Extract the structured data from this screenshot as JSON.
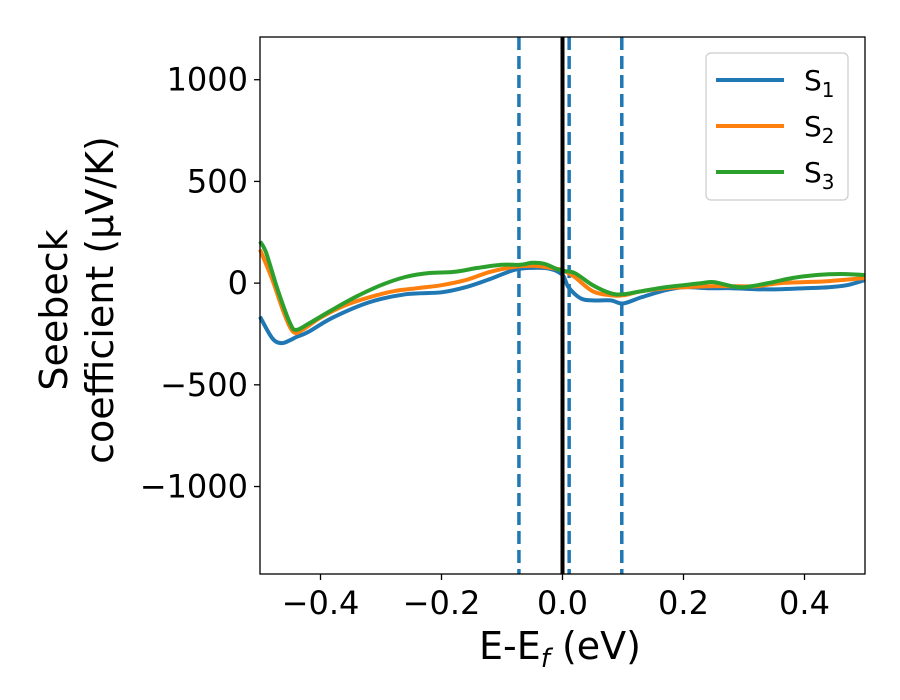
{
  "chart_data": {
    "type": "line",
    "xlabel": {
      "main": "E-E",
      "sub": "f",
      "rest": " (eV)"
    },
    "ylabel": {
      "line1": "Seebeck",
      "line2": "coefficient  (μV/K)"
    },
    "xlim": [
      -0.5,
      0.5
    ],
    "ylim": [
      -1430,
      1210
    ],
    "xticks": [
      -0.4,
      -0.2,
      0.0,
      0.2,
      0.4
    ],
    "xtick_labels": [
      "−0.4",
      "−0.2",
      "0.0",
      "0.2",
      "0.4"
    ],
    "yticks": [
      1000,
      500,
      0,
      -500,
      -1000
    ],
    "ytick_labels": [
      "1000",
      "500",
      "0",
      "−500",
      "−1000"
    ],
    "grid": false,
    "legend_position": "top-right",
    "vertical_lines": [
      {
        "x": 0.0,
        "style": "solid",
        "color": "#000000"
      },
      {
        "x": -0.072,
        "style": "dashed",
        "color": "#1f77b4"
      },
      {
        "x": 0.011,
        "style": "dashed",
        "color": "#1f77b4"
      },
      {
        "x": 0.098,
        "style": "dashed",
        "color": "#1f77b4"
      }
    ],
    "series": [
      {
        "name": "S",
        "name_sub": "1",
        "color": "#1f77b4",
        "x": [
          -0.5,
          -0.48,
          -0.465,
          -0.45,
          -0.44,
          -0.42,
          -0.38,
          -0.32,
          -0.26,
          -0.2,
          -0.16,
          -0.12,
          -0.08,
          -0.05,
          -0.02,
          0.0,
          0.01,
          0.03,
          0.05,
          0.08,
          0.1,
          0.13,
          0.17,
          0.2,
          0.24,
          0.28,
          0.32,
          0.36,
          0.4,
          0.44,
          0.47,
          0.5
        ],
        "y": [
          -165,
          -270,
          -295,
          -280,
          -265,
          -240,
          -170,
          -95,
          -55,
          -45,
          -20,
          20,
          65,
          75,
          70,
          40,
          -20,
          -75,
          -85,
          -85,
          -100,
          -70,
          -35,
          -20,
          -25,
          -25,
          -30,
          -30,
          -25,
          -20,
          -10,
          15
        ]
      },
      {
        "name": "S",
        "name_sub": "2",
        "color": "#ff7f0e",
        "x": [
          -0.5,
          -0.48,
          -0.46,
          -0.445,
          -0.43,
          -0.4,
          -0.36,
          -0.32,
          -0.28,
          -0.24,
          -0.2,
          -0.16,
          -0.12,
          -0.08,
          -0.05,
          -0.03,
          -0.01,
          0.0,
          0.02,
          0.05,
          0.08,
          0.1,
          0.13,
          0.17,
          0.2,
          0.24,
          0.28,
          0.32,
          0.36,
          0.4,
          0.44,
          0.5
        ],
        "y": [
          165,
          20,
          -150,
          -240,
          -230,
          -170,
          -110,
          -70,
          -40,
          -25,
          -10,
          15,
          55,
          80,
          85,
          80,
          70,
          65,
          30,
          -40,
          -60,
          -60,
          -40,
          -25,
          -20,
          -15,
          -15,
          -15,
          0,
          5,
          10,
          25
        ]
      },
      {
        "name": "S",
        "name_sub": "3",
        "color": "#2ca02c",
        "x": [
          -0.5,
          -0.49,
          -0.47,
          -0.45,
          -0.44,
          -0.42,
          -0.38,
          -0.34,
          -0.3,
          -0.26,
          -0.22,
          -0.18,
          -0.14,
          -0.1,
          -0.07,
          -0.05,
          -0.03,
          -0.01,
          0.0,
          0.02,
          0.05,
          0.08,
          0.1,
          0.13,
          0.17,
          0.2,
          0.23,
          0.25,
          0.28,
          0.3,
          0.34,
          0.38,
          0.42,
          0.46,
          0.5
        ],
        "y": [
          205,
          150,
          -40,
          -200,
          -230,
          -200,
          -130,
          -65,
          -10,
          30,
          50,
          55,
          75,
          90,
          90,
          100,
          95,
          70,
          60,
          50,
          -10,
          -50,
          -55,
          -40,
          -20,
          -10,
          0,
          5,
          -15,
          -20,
          0,
          25,
          40,
          45,
          40
        ]
      }
    ]
  }
}
